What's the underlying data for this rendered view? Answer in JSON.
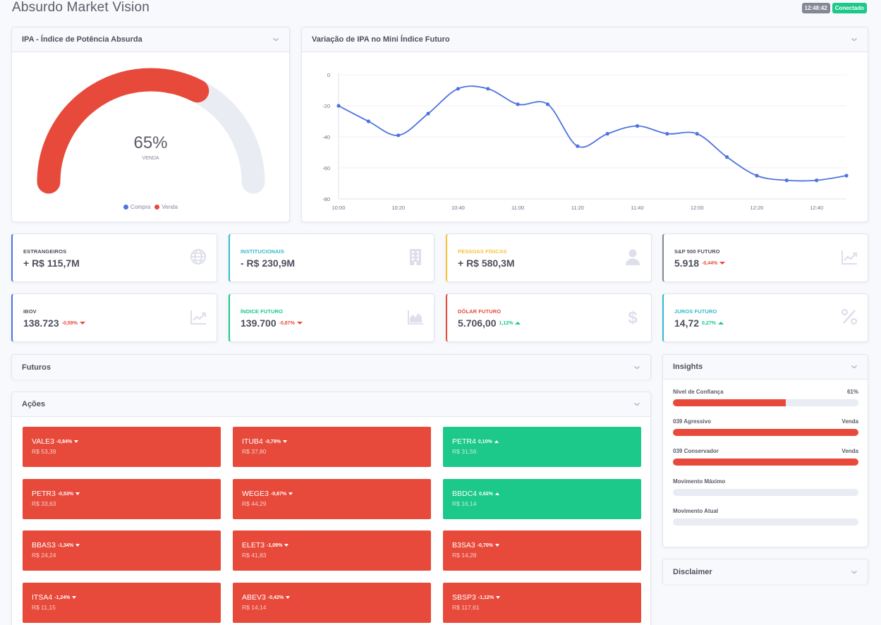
{
  "title": "Absurdo Market Vision",
  "status": {
    "time": "12:48:42",
    "connection": "Conectado"
  },
  "gauge": {
    "header": "IPA - Índice de Potência Absurda",
    "percent_label": "65%",
    "percent": 65,
    "sublabel": "VENDA",
    "legend": [
      {
        "label": "Compra",
        "color": "#4e73df"
      },
      {
        "label": "Venda",
        "color": "#e74a3b"
      }
    ]
  },
  "line_chart": {
    "header": "Variação de IPA no Mini Índice Futuro"
  },
  "chart_data": {
    "type": "line",
    "x_ticks": [
      "10:00",
      "10:20",
      "10:40",
      "11:00",
      "11:20",
      "11:40",
      "12:00",
      "12:20",
      "12:40"
    ],
    "y_ticks": [
      "0",
      "-20",
      "-40",
      "-60",
      "-80"
    ],
    "ylim": [
      -80,
      0
    ],
    "xlim_minutes": [
      0,
      170
    ],
    "color": "#4e73df",
    "grid": true,
    "legend": "none",
    "series": [
      {
        "x": [
          "10:00",
          "10:10",
          "10:20",
          "10:30",
          "10:40",
          "10:50",
          "11:00",
          "11:10",
          "11:20",
          "11:30",
          "11:40",
          "11:50",
          "12:00",
          "12:10",
          "12:20",
          "12:30",
          "12:40",
          "12:50"
        ],
        "x_min": [
          0,
          10,
          20,
          30,
          40,
          50,
          60,
          70,
          80,
          90,
          100,
          110,
          120,
          130,
          140,
          150,
          160,
          170
        ],
        "values": [
          -20,
          -30,
          -39,
          -25,
          -9,
          -9,
          -19,
          -19,
          -46,
          -38,
          -33,
          -38,
          -38,
          -53,
          -65,
          -68,
          -68,
          -65
        ]
      }
    ]
  },
  "stats_row1": [
    {
      "label": "ESTRANGEIROS",
      "value": "+ R$ 115,7M",
      "change": "",
      "dir": "",
      "color": "#4e73df",
      "label_color": "#4e4f5c",
      "icon": "globe-icon"
    },
    {
      "label": "INSTITUCIONAIS",
      "value": "- R$ 230,9M",
      "change": "",
      "dir": "",
      "color": "#36b9cc",
      "label_color": "#36b9cc",
      "icon": "building-icon"
    },
    {
      "label": "PESSOAS FÍSICAS",
      "value": "+ R$ 580,3M",
      "change": "",
      "dir": "",
      "color": "#f6c23e",
      "label_color": "#f6c23e",
      "icon": "user-icon"
    },
    {
      "label": "S&P 500 FUTURO",
      "value": "5.918",
      "change": "-0,44%",
      "dir": "down",
      "color": "#858796",
      "label_color": "#4e4f5c",
      "icon": "chart-line-icon"
    }
  ],
  "stats_row2": [
    {
      "label": "IBOV",
      "value": "138.723",
      "change": "-0,59%",
      "dir": "down",
      "color": "#4e73df",
      "label_color": "#4e4f5c",
      "icon": "chart-line-icon"
    },
    {
      "label": "ÍNDICE FUTURO",
      "value": "139.700",
      "change": "-0,87%",
      "dir": "down",
      "color": "#1cc88a",
      "label_color": "#1cc88a",
      "icon": "chart-area-icon"
    },
    {
      "label": "DÓLAR FUTURO",
      "value": "5.706,00",
      "change": "1,12%",
      "dir": "up",
      "color": "#e74a3b",
      "label_color": "#e74a3b",
      "icon": "dollar-icon"
    },
    {
      "label": "JUROS FUTURO",
      "value": "14,72",
      "change": "0,27%",
      "dir": "up",
      "color": "#36b9cc",
      "label_color": "#36b9cc",
      "icon": "percent-icon"
    }
  ],
  "futuros": {
    "header": "Futuros"
  },
  "acoes": {
    "header": "Ações",
    "tiles": [
      {
        "symbol": "VALE3",
        "change": "-0,84%",
        "dir": "down",
        "price": "R$ 53,39"
      },
      {
        "symbol": "ITUB4",
        "change": "-0,79%",
        "dir": "down",
        "price": "R$ 37,80"
      },
      {
        "symbol": "PETR4",
        "change": "0,10%",
        "dir": "up",
        "price": "R$ 31,56"
      },
      {
        "symbol": "PETR3",
        "change": "-0,53%",
        "dir": "down",
        "price": "R$ 33,63"
      },
      {
        "symbol": "WEGE3",
        "change": "-0,67%",
        "dir": "down",
        "price": "R$ 44,29"
      },
      {
        "symbol": "BBDC4",
        "change": "0,62%",
        "dir": "up",
        "price": "R$ 16,14"
      },
      {
        "symbol": "BBAS3",
        "change": "-1,34%",
        "dir": "down",
        "price": "R$ 24,24"
      },
      {
        "symbol": "ELET3",
        "change": "-1,09%",
        "dir": "down",
        "price": "R$ 41,83"
      },
      {
        "symbol": "B3SA3",
        "change": "-0,70%",
        "dir": "down",
        "price": "R$ 14,28"
      },
      {
        "symbol": "ITSA4",
        "change": "-1,24%",
        "dir": "down",
        "price": "R$ 11,15"
      },
      {
        "symbol": "ABEV3",
        "change": "-0,42%",
        "dir": "down",
        "price": "R$ 14,14"
      },
      {
        "symbol": "SBSP3",
        "change": "-1,12%",
        "dir": "down",
        "price": "R$ 117,61"
      }
    ]
  },
  "insights": {
    "header": "Insights",
    "rows": [
      {
        "label": "Nível de Confiança",
        "value": "61%",
        "fill": 61
      },
      {
        "label": "039 Agressivo",
        "value": "Venda",
        "fill": 100
      },
      {
        "label": "039 Conservador",
        "value": "Venda",
        "fill": 100
      },
      {
        "label": "Movimento Máximo",
        "value": "",
        "fill": 0
      },
      {
        "label": "Movimento Atual",
        "value": "",
        "fill": 0
      }
    ]
  },
  "disclaimer": {
    "header": "Disclaimer"
  }
}
